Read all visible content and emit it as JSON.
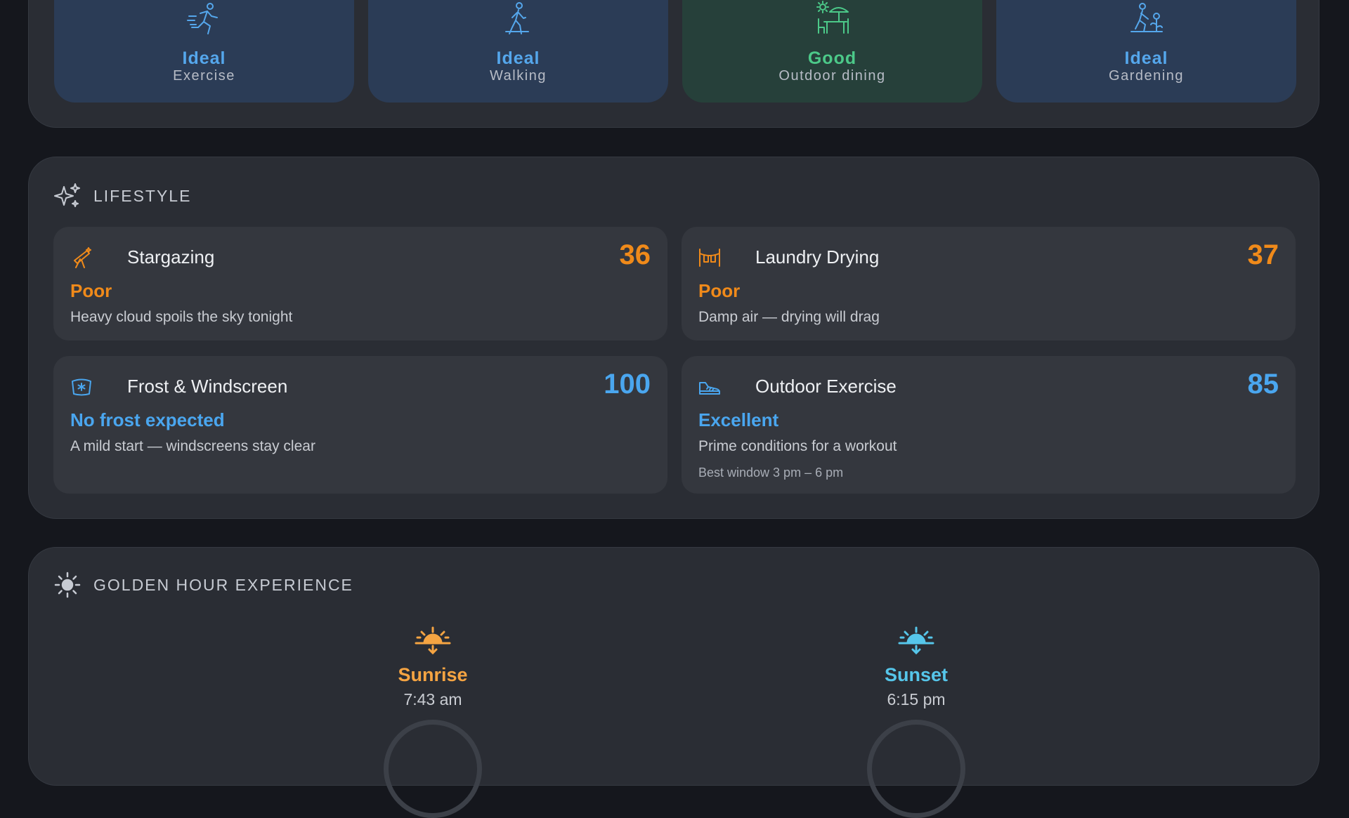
{
  "activities": [
    {
      "status": "Ideal",
      "label": "Exercise",
      "icon": "running-icon"
    },
    {
      "status": "Ideal",
      "label": "Walking",
      "icon": "walking-icon"
    },
    {
      "status": "Good",
      "label": "Outdoor dining",
      "icon": "outdoor-dining-icon"
    },
    {
      "status": "Ideal",
      "label": "Gardening",
      "icon": "gardening-icon"
    }
  ],
  "lifestyle": {
    "title": "LIFESTYLE",
    "cards": [
      {
        "title": "Stargazing",
        "score": "36",
        "status": "Poor",
        "description": "Heavy cloud spoils the sky tonight",
        "icon": "telescope-icon"
      },
      {
        "title": "Laundry Drying",
        "score": "37",
        "status": "Poor",
        "description": "Damp air — drying will drag",
        "icon": "laundry-icon"
      },
      {
        "title": "Frost & Windscreen",
        "score": "100",
        "status": "No frost expected",
        "description": "A mild start — windscreens stay clear",
        "icon": "windscreen-icon"
      },
      {
        "title": "Outdoor Exercise",
        "score": "85",
        "status": "Excellent",
        "description": "Prime conditions for a workout",
        "window": "Best window 3 pm – 6 pm",
        "icon": "sneaker-icon"
      }
    ]
  },
  "golden_hour": {
    "title": "GOLDEN HOUR EXPERIENCE",
    "sunrise": {
      "label": "Sunrise",
      "time": "7:43 am"
    },
    "sunset": {
      "label": "Sunset",
      "time": "6:15 pm"
    }
  },
  "colors": {
    "ideal": "#55a7ec",
    "good": "#4cc989",
    "poor": "#f08a1a",
    "sunrise": "#f5a442",
    "sunset": "#56c6ea"
  }
}
